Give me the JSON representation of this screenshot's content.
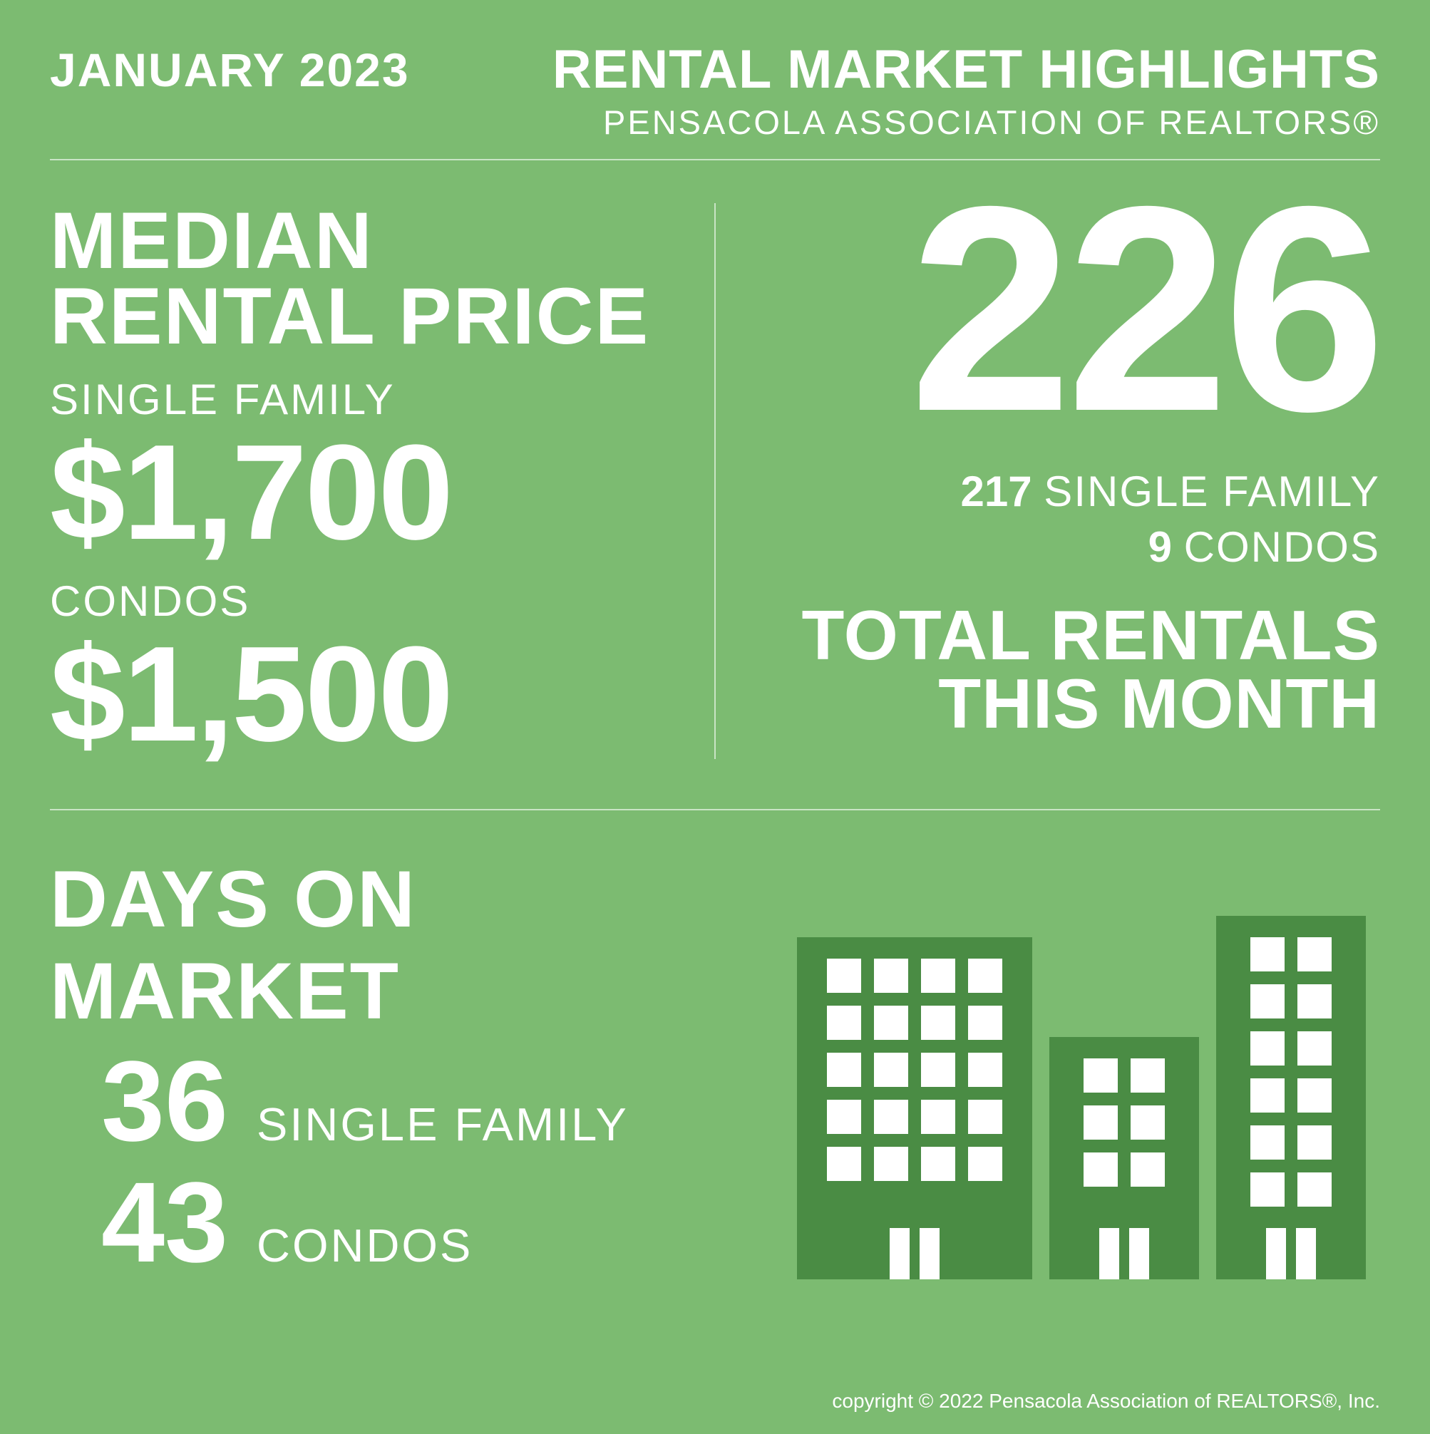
{
  "colors": {
    "background": "#7cbb71",
    "text": "#ffffff",
    "building": "#4a8c44",
    "divider": "rgba(255,255,255,0.6)"
  },
  "header": {
    "date": "JANUARY 2023",
    "title": "RENTAL MARKET HIGHLIGHTS",
    "subtitle": "PENSACOLA ASSOCIATION OF REALTORS®"
  },
  "median": {
    "heading_line1": "MEDIAN",
    "heading_line2": "RENTAL PRICE",
    "single_family_label": "SINGLE FAMILY",
    "single_family_price": "$1,700",
    "condos_label": "CONDOS",
    "condos_price": "$1,500"
  },
  "totals": {
    "big_number": "226",
    "sf_count": "217",
    "sf_label": "SINGLE FAMILY",
    "condo_count": "9",
    "condo_label": "CONDOS",
    "label_line1": "TOTAL RENTALS",
    "label_line2": "THIS MONTH"
  },
  "dom": {
    "heading": "DAYS ON MARKET",
    "sf_value": "36",
    "sf_label": "SINGLE FAMILY",
    "condo_value": "43",
    "condo_label": "CONDOS"
  },
  "buildings": {
    "b1": {
      "cols": 4,
      "rows": 5,
      "has_door": true
    },
    "b2": {
      "cols": 2,
      "rows": 3,
      "has_door": true
    },
    "b3": {
      "cols": 2,
      "rows": 6,
      "has_door": true
    }
  },
  "footer": {
    "copyright": "copyright © 2022 Pensacola Association of REALTORS®, Inc."
  }
}
